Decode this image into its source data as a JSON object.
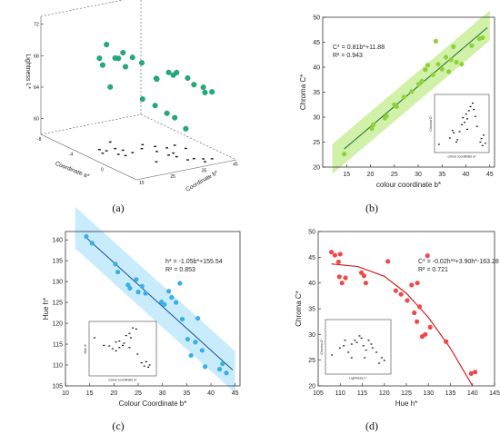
{
  "panels": {
    "a": {
      "caption": "(a)"
    },
    "b": {
      "caption": "(b)"
    },
    "c": {
      "caption": "(c)"
    },
    "d": {
      "caption": "(d)"
    }
  },
  "chart_data": [
    {
      "id": "a",
      "type": "scatter",
      "projection": "3d",
      "axes": {
        "z": {
          "label": "Lightness L*",
          "ticks": [
            "60",
            "64",
            "68",
            "72"
          ]
        },
        "x": {
          "label": "Coordinate a*",
          "ticks": [
            "-8",
            "-4",
            "0"
          ]
        },
        "y": {
          "label": "Coordinate b*",
          "ticks": [
            "15",
            "25",
            "35",
            "45"
          ]
        }
      },
      "marker_color": "#1fae7a",
      "projection_marker_color": "#111111",
      "points": [
        {
          "a": -2.5,
          "b": 22,
          "L": 71.5
        },
        {
          "a": -2.0,
          "b": 26,
          "L": 70.4
        },
        {
          "a": -1.4,
          "b": 23,
          "L": 70.2
        },
        {
          "a": -1.2,
          "b": 27,
          "L": 70.1
        },
        {
          "a": -3.0,
          "b": 21,
          "L": 69.6
        },
        {
          "a": -2.6,
          "b": 25,
          "L": 69.5
        },
        {
          "a": -0.9,
          "b": 24,
          "L": 69.3
        },
        {
          "a": -2.2,
          "b": 20,
          "L": 69.2
        },
        {
          "a": -1.6,
          "b": 31,
          "L": 68.9
        },
        {
          "a": 1.4,
          "b": 28,
          "L": 68.6
        },
        {
          "a": 0.6,
          "b": 34,
          "L": 68.5
        },
        {
          "a": 1.2,
          "b": 35,
          "L": 68.7
        },
        {
          "a": 2.2,
          "b": 36,
          "L": 68.4
        },
        {
          "a": 0.4,
          "b": 36,
          "L": 67.9
        },
        {
          "a": -0.5,
          "b": 33,
          "L": 67.2
        },
        {
          "a": 2.2,
          "b": 38,
          "L": 67.4
        },
        {
          "a": 2.6,
          "b": 40,
          "L": 67.1
        },
        {
          "a": 3.2,
          "b": 39,
          "L": 66.8
        },
        {
          "a": 2.9,
          "b": 42,
          "L": 66.5
        },
        {
          "a": -4.0,
          "b": 27,
          "L": 65.0
        },
        {
          "a": -2.3,
          "b": 33,
          "L": 63.8
        },
        {
          "a": -1.5,
          "b": 35,
          "L": 63.2
        },
        {
          "a": -0.8,
          "b": 37,
          "L": 62.4
        },
        {
          "a": -1.0,
          "b": 40,
          "L": 61.5
        },
        {
          "a": 0.0,
          "b": 41,
          "L": 60.5
        }
      ]
    },
    {
      "id": "b",
      "type": "scatter",
      "xlabel": "colour coordinate b*",
      "ylabel": "Chroma C*",
      "xlim": [
        10,
        46
      ],
      "ylim": [
        20,
        50
      ],
      "xticks": [
        15,
        20,
        25,
        30,
        35,
        40,
        45
      ],
      "yticks": [
        20,
        25,
        30,
        35,
        40,
        45,
        50
      ],
      "equation": "C* = 0.81b*+11.88",
      "r2": "R² = 0.943",
      "marker_color": "#8ed23a",
      "band_color": "#c9ee9a",
      "line_color": "#1f6b3a",
      "fit": {
        "slope": 0.81,
        "intercept": 11.88,
        "band": 3.0
      },
      "points": [
        {
          "x": 14.5,
          "y": 22.6
        },
        {
          "x": 20.3,
          "y": 27.7
        },
        {
          "x": 20.6,
          "y": 28.5
        },
        {
          "x": 23.0,
          "y": 29.8
        },
        {
          "x": 23.4,
          "y": 30.2
        },
        {
          "x": 25.0,
          "y": 32.5
        },
        {
          "x": 25.5,
          "y": 32.1
        },
        {
          "x": 27.0,
          "y": 34.0
        },
        {
          "x": 28.6,
          "y": 35.1
        },
        {
          "x": 30.1,
          "y": 36.6
        },
        {
          "x": 30.8,
          "y": 37.2
        },
        {
          "x": 31.5,
          "y": 39.5
        },
        {
          "x": 32.0,
          "y": 40.4
        },
        {
          "x": 33.1,
          "y": 38.5
        },
        {
          "x": 33.7,
          "y": 45.2
        },
        {
          "x": 34.2,
          "y": 40.6
        },
        {
          "x": 35.0,
          "y": 39.6
        },
        {
          "x": 35.8,
          "y": 42.0
        },
        {
          "x": 36.4,
          "y": 39.1
        },
        {
          "x": 36.9,
          "y": 41.5
        },
        {
          "x": 37.4,
          "y": 44.1
        },
        {
          "x": 38.0,
          "y": 41.0
        },
        {
          "x": 39.1,
          "y": 40.6
        },
        {
          "x": 41.2,
          "y": 44.3
        },
        {
          "x": 42.8,
          "y": 45.7
        },
        {
          "x": 43.5,
          "y": 45.9
        }
      ],
      "inset": {
        "xlabel": "colour coordinate a*",
        "ylabel": "Chroma C*",
        "points": [
          [
            0.08,
            0.14
          ],
          [
            0.28,
            0.25
          ],
          [
            0.33,
            0.38
          ],
          [
            0.35,
            0.34
          ],
          [
            0.42,
            0.22
          ],
          [
            0.46,
            0.36
          ],
          [
            0.5,
            0.48
          ],
          [
            0.52,
            0.6
          ],
          [
            0.55,
            0.52
          ],
          [
            0.58,
            0.66
          ],
          [
            0.6,
            0.58
          ],
          [
            0.63,
            0.72
          ],
          [
            0.66,
            0.79
          ],
          [
            0.7,
            0.85
          ],
          [
            0.72,
            0.74
          ],
          [
            0.75,
            0.62
          ],
          [
            0.78,
            0.45
          ],
          [
            0.84,
            0.18
          ],
          [
            0.86,
            0.24
          ],
          [
            0.88,
            0.12
          ],
          [
            0.9,
            0.3
          ],
          [
            0.93,
            0.16
          ],
          [
            0.4,
            0.18
          ],
          [
            0.6,
            0.4
          ]
        ]
      }
    },
    {
      "id": "c",
      "type": "scatter",
      "xlabel": "Colour Coordinate b*",
      "ylabel": "Hue h*",
      "xlim": [
        10,
        46
      ],
      "ylim": [
        105,
        142
      ],
      "xticks": [
        10,
        15,
        20,
        25,
        30,
        35,
        40,
        45
      ],
      "yticks": [
        105,
        110,
        115,
        120,
        125,
        130,
        135,
        140
      ],
      "equation": "h* = -1.05b*+155.54",
      "r2": "R² = 0.853",
      "marker_color": "#3aaee6",
      "band_color": "#bfe9fb",
      "line_color": "#1f4f8a",
      "fit": {
        "slope": -1.05,
        "intercept": 155.54,
        "band": 5.0
      },
      "points": [
        {
          "x": 14.3,
          "y": 140.8
        },
        {
          "x": 15.5,
          "y": 139.2
        },
        {
          "x": 20.3,
          "y": 134.2
        },
        {
          "x": 20.8,
          "y": 132.3
        },
        {
          "x": 22.9,
          "y": 129.2
        },
        {
          "x": 23.3,
          "y": 128.4
        },
        {
          "x": 24.6,
          "y": 130.5
        },
        {
          "x": 25.0,
          "y": 127.5
        },
        {
          "x": 25.8,
          "y": 128.9
        },
        {
          "x": 26.5,
          "y": 127.2
        },
        {
          "x": 29.8,
          "y": 125.1
        },
        {
          "x": 30.4,
          "y": 124.5
        },
        {
          "x": 31.3,
          "y": 127.7
        },
        {
          "x": 31.9,
          "y": 126.2
        },
        {
          "x": 32.8,
          "y": 125.0
        },
        {
          "x": 33.6,
          "y": 129.6
        },
        {
          "x": 34.1,
          "y": 121.0
        },
        {
          "x": 35.2,
          "y": 116.2
        },
        {
          "x": 35.9,
          "y": 112.3
        },
        {
          "x": 36.8,
          "y": 115.5
        },
        {
          "x": 37.3,
          "y": 121.2
        },
        {
          "x": 38.2,
          "y": 113.5
        },
        {
          "x": 38.8,
          "y": 109.6
        },
        {
          "x": 41.8,
          "y": 109.0
        },
        {
          "x": 42.4,
          "y": 110.3
        },
        {
          "x": 43.2,
          "y": 108.1
        }
      ],
      "inset": {
        "xlabel": "colour coordinate a*",
        "ylabel": "Hue h*",
        "points": [
          [
            0.08,
            0.7
          ],
          [
            0.22,
            0.56
          ],
          [
            0.3,
            0.55
          ],
          [
            0.35,
            0.5
          ],
          [
            0.4,
            0.62
          ],
          [
            0.45,
            0.52
          ],
          [
            0.5,
            0.56
          ],
          [
            0.52,
            0.6
          ],
          [
            0.55,
            0.74
          ],
          [
            0.6,
            0.78
          ],
          [
            0.62,
            0.7
          ],
          [
            0.65,
            0.88
          ],
          [
            0.7,
            0.86
          ],
          [
            0.72,
            0.4
          ],
          [
            0.78,
            0.24
          ],
          [
            0.82,
            0.18
          ],
          [
            0.85,
            0.26
          ],
          [
            0.88,
            0.16
          ],
          [
            0.9,
            0.2
          ],
          [
            0.6,
            0.52
          ],
          [
            0.45,
            0.64
          ],
          [
            0.4,
            0.46
          ]
        ]
      }
    },
    {
      "id": "d",
      "type": "scatter",
      "xlabel": "Hue h*",
      "ylabel": "Chroma C*",
      "xlim": [
        105,
        145
      ],
      "ylim": [
        20,
        50
      ],
      "xticks": [
        105,
        110,
        115,
        120,
        125,
        130,
        135,
        140,
        145
      ],
      "yticks": [
        20,
        25,
        30,
        35,
        40,
        45,
        50
      ],
      "equation": "C* = -0.02h*²+3.90h*-163.28",
      "r2": "R² = 0.721",
      "marker_color": "#ee4a4a",
      "line_color": "#d42020",
      "fit": {
        "curve": [
          [
            108,
            43.7
          ],
          [
            114,
            43.2
          ],
          [
            120,
            41.3
          ],
          [
            125,
            38.0
          ],
          [
            130,
            33.3
          ],
          [
            135,
            27.3
          ],
          [
            140,
            20.0
          ]
        ]
      },
      "points": [
        {
          "x": 108.0,
          "y": 46.0
        },
        {
          "x": 108.8,
          "y": 45.4
        },
        {
          "x": 109.6,
          "y": 44.1
        },
        {
          "x": 110.0,
          "y": 45.6
        },
        {
          "x": 109.8,
          "y": 41.2
        },
        {
          "x": 110.4,
          "y": 40.0
        },
        {
          "x": 111.2,
          "y": 41.0
        },
        {
          "x": 114.8,
          "y": 42.0
        },
        {
          "x": 115.4,
          "y": 41.4
        },
        {
          "x": 115.8,
          "y": 40.0
        },
        {
          "x": 120.8,
          "y": 44.2
        },
        {
          "x": 122.6,
          "y": 38.5
        },
        {
          "x": 123.8,
          "y": 37.8
        },
        {
          "x": 125.2,
          "y": 36.6
        },
        {
          "x": 126.2,
          "y": 39.6
        },
        {
          "x": 127.5,
          "y": 40.0
        },
        {
          "x": 126.8,
          "y": 34.2
        },
        {
          "x": 127.4,
          "y": 32.5
        },
        {
          "x": 128.0,
          "y": 35.4
        },
        {
          "x": 128.6,
          "y": 29.6
        },
        {
          "x": 129.3,
          "y": 30.0
        },
        {
          "x": 129.8,
          "y": 45.3
        },
        {
          "x": 130.4,
          "y": 31.4
        },
        {
          "x": 134.0,
          "y": 28.6
        },
        {
          "x": 139.7,
          "y": 22.4
        },
        {
          "x": 140.6,
          "y": 22.7
        }
      ],
      "inset": {
        "xlabel": "Lightness L*",
        "ylabel": "Chroma C*",
        "points": [
          [
            0.1,
            0.35
          ],
          [
            0.22,
            0.48
          ],
          [
            0.28,
            0.52
          ],
          [
            0.35,
            0.4
          ],
          [
            0.4,
            0.55
          ],
          [
            0.45,
            0.62
          ],
          [
            0.48,
            0.58
          ],
          [
            0.52,
            0.7
          ],
          [
            0.55,
            0.66
          ],
          [
            0.58,
            0.52
          ],
          [
            0.62,
            0.44
          ],
          [
            0.66,
            0.62
          ],
          [
            0.7,
            0.55
          ],
          [
            0.72,
            0.48
          ],
          [
            0.78,
            0.4
          ],
          [
            0.82,
            0.2
          ],
          [
            0.86,
            0.3
          ],
          [
            0.9,
            0.25
          ],
          [
            0.6,
            0.3
          ],
          [
            0.4,
            0.3
          ],
          [
            0.3,
            0.62
          ]
        ]
      }
    }
  ]
}
